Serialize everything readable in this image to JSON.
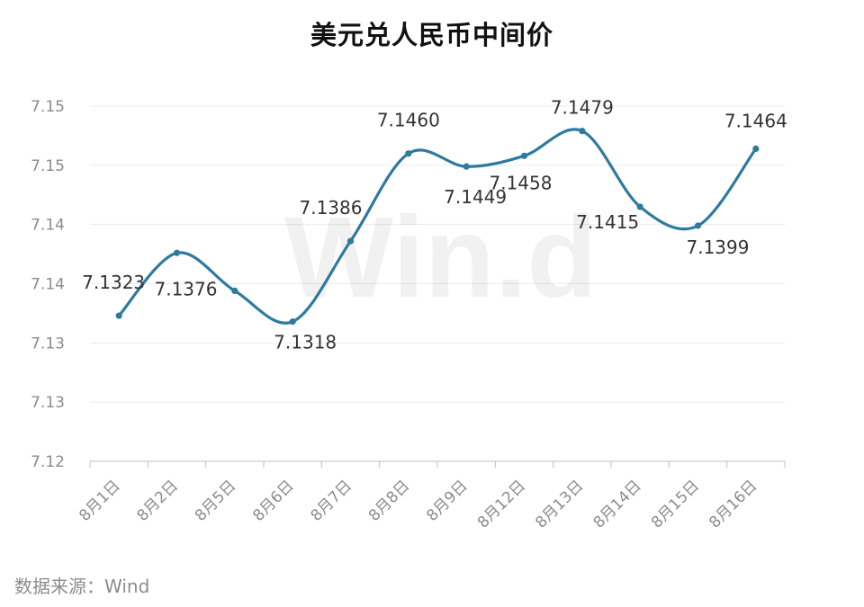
{
  "chart_data": {
    "type": "line",
    "title": "美元兑人民币中间价",
    "categories": [
      "8月1日",
      "8月2日",
      "8月5日",
      "8月6日",
      "8月7日",
      "8月8日",
      "8月9日",
      "8月12日",
      "8月13日",
      "8月14日",
      "8月15日",
      "8月16日"
    ],
    "series": [
      {
        "values": [
          7.1323,
          7.1376,
          7.1344,
          7.1318,
          7.1386,
          7.146,
          7.1449,
          7.1458,
          7.1479,
          7.1415,
          7.1399,
          7.1464
        ],
        "data_labels": [
          "7.1323",
          "7.1376",
          "",
          "7.1318",
          "7.1386",
          "7.1460",
          "7.1449",
          "7.1458",
          "7.1479",
          "7.1415",
          "7.1399",
          "7.1464"
        ],
        "color": "#2e7aa0"
      }
    ],
    "y_tick_labels": [
      "7.12",
      "7.13",
      "7.13",
      "7.14",
      "7.14",
      "7.15",
      "7.15"
    ],
    "ylim": [
      7.12,
      7.15
    ],
    "grid": true,
    "watermark": "Win.d",
    "source": "数据来源：Wind"
  }
}
